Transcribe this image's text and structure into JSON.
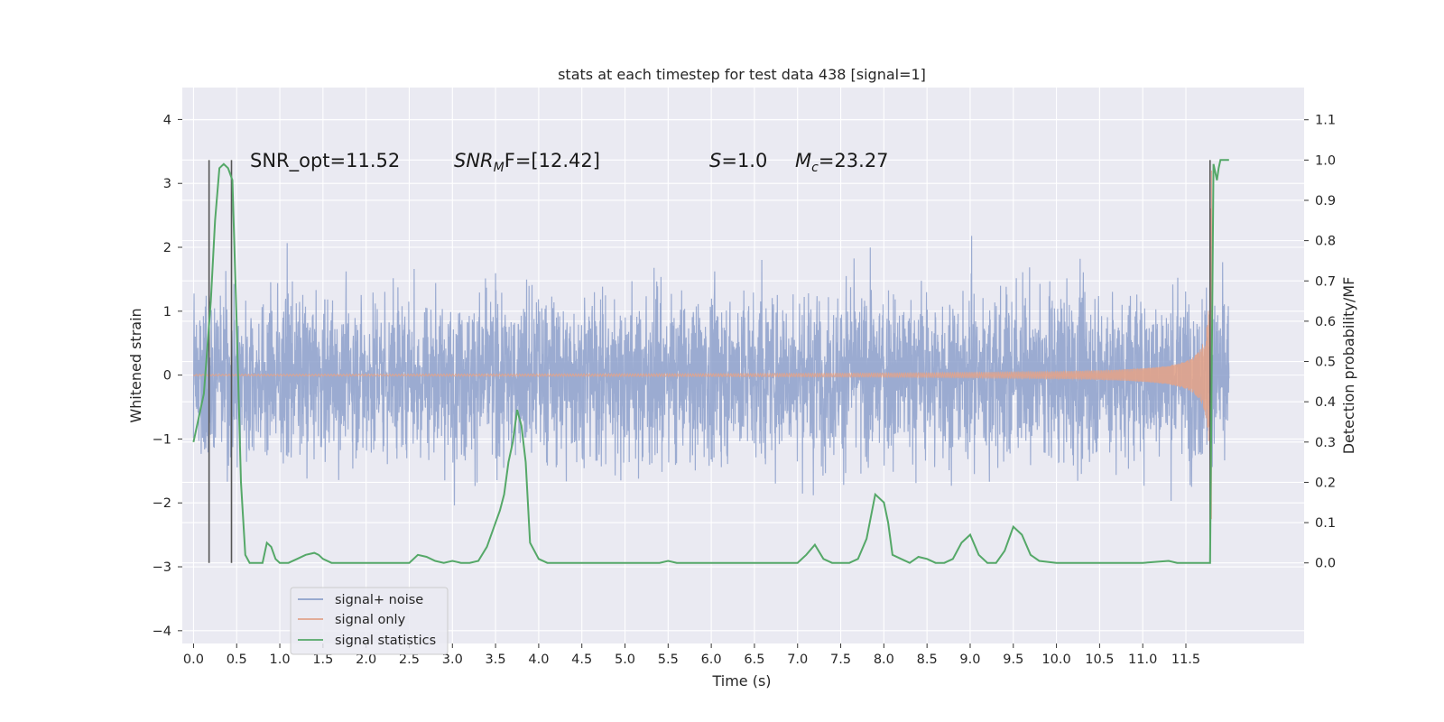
{
  "chart_data": {
    "type": "line",
    "title": "stats at each timestep for test data 438 [signal=1]",
    "xlabel": "Time (s)",
    "ylabel": "Whitened strain",
    "ylabel_right": "Detection probability/MF",
    "xlim": [
      -0.13,
      12.87
    ],
    "ylim": [
      -4.2,
      4.5
    ],
    "ylim_right": [
      -0.2,
      1.18
    ],
    "x_ticks": [
      "0.0",
      "0.5",
      "1.0",
      "1.5",
      "2.0",
      "2.5",
      "3.0",
      "3.5",
      "4.0",
      "4.5",
      "5.0",
      "5.5",
      "6.0",
      "6.5",
      "7.0",
      "7.5",
      "8.0",
      "8.5",
      "9.0",
      "9.5",
      "10.0",
      "10.5",
      "11.0",
      "11.5"
    ],
    "y_ticks": [
      "4",
      "3",
      "2",
      "1",
      "0",
      "−1",
      "−2",
      "−3",
      "−4"
    ],
    "y_ticks_right": [
      "1.1",
      "1.0",
      "0.9",
      "0.8",
      "0.7",
      "0.6",
      "0.5",
      "0.4",
      "0.3",
      "0.2",
      "0.1",
      "0.0"
    ],
    "grid": true,
    "legend_placement": "lower-left",
    "series": [
      {
        "name": "signal+ noise",
        "color": "#8da0cb",
        "kind": "noise_strain",
        "x_range": [
          0.0,
          12.0
        ]
      },
      {
        "name": "signal only",
        "color": "#e1a38b",
        "kind": "chirp",
        "x_range": [
          0.0,
          11.8
        ]
      },
      {
        "name": "signal statistics",
        "color": "#55a868",
        "axis": "right",
        "x": [
          0.0,
          0.12,
          0.2,
          0.25,
          0.3,
          0.35,
          0.4,
          0.45,
          0.5,
          0.55,
          0.6,
          0.65,
          0.7,
          0.8,
          0.85,
          0.9,
          0.95,
          1.0,
          1.1,
          1.2,
          1.3,
          1.4,
          1.45,
          1.5,
          1.6,
          1.7,
          2.0,
          2.5,
          2.6,
          2.7,
          2.8,
          2.9,
          3.0,
          3.1,
          3.2,
          3.3,
          3.4,
          3.5,
          3.55,
          3.6,
          3.65,
          3.7,
          3.75,
          3.8,
          3.85,
          3.9,
          4.0,
          4.1,
          4.5,
          5.0,
          5.4,
          5.5,
          5.6,
          5.7,
          5.8,
          6.0,
          6.5,
          7.0,
          7.1,
          7.2,
          7.3,
          7.4,
          7.5,
          7.6,
          7.7,
          7.8,
          7.9,
          8.0,
          8.05,
          8.1,
          8.2,
          8.3,
          8.4,
          8.5,
          8.6,
          8.7,
          8.8,
          8.9,
          9.0,
          9.1,
          9.2,
          9.3,
          9.4,
          9.5,
          9.6,
          9.7,
          9.8,
          10.0,
          10.5,
          11.0,
          11.3,
          11.4,
          11.5,
          11.6,
          11.65,
          11.7,
          11.78,
          11.82,
          11.86,
          11.88,
          11.9,
          11.95,
          12.0
        ],
        "y": [
          0.3,
          0.42,
          0.65,
          0.85,
          0.98,
          0.99,
          0.98,
          0.95,
          0.6,
          0.2,
          0.02,
          0.0,
          0.0,
          0.0,
          0.05,
          0.04,
          0.01,
          0.0,
          0.0,
          0.01,
          0.02,
          0.025,
          0.02,
          0.01,
          0.0,
          0.0,
          0.0,
          0.0,
          0.02,
          0.015,
          0.005,
          0.0,
          0.005,
          0.0,
          0.0,
          0.005,
          0.04,
          0.1,
          0.13,
          0.17,
          0.25,
          0.3,
          0.38,
          0.34,
          0.25,
          0.05,
          0.01,
          0.0,
          0.0,
          0.0,
          0.0,
          0.005,
          0.0,
          0.0,
          0.0,
          0.0,
          0.0,
          0.0,
          0.02,
          0.045,
          0.01,
          0.0,
          0.0,
          0.0,
          0.01,
          0.06,
          0.17,
          0.15,
          0.1,
          0.02,
          0.01,
          0.0,
          0.015,
          0.01,
          0.0,
          0.0,
          0.01,
          0.05,
          0.07,
          0.02,
          0.0,
          0.0,
          0.03,
          0.09,
          0.07,
          0.02,
          0.005,
          0.0,
          0.0,
          0.0,
          0.005,
          0.0,
          0.0,
          0.0,
          0.0,
          0.0,
          0.0,
          0.99,
          0.95,
          0.98,
          1.0,
          1.0,
          1.0
        ]
      }
    ],
    "vertical_markers": [
      0.18,
      0.44,
      11.78
    ],
    "annotations": [
      {
        "text": "SNR_opt=11.52"
      },
      {
        "text": "SNR",
        "sub": "M",
        "suffix": "F=[12.42]"
      },
      {
        "text": "S",
        "suffix": "=1.0"
      },
      {
        "text": "M",
        "sub": "c",
        "suffix": "=23.27"
      }
    ]
  },
  "colors": {
    "plot_bg": "#eaeaf2",
    "grid": "#ffffff",
    "marker": "#555555"
  }
}
